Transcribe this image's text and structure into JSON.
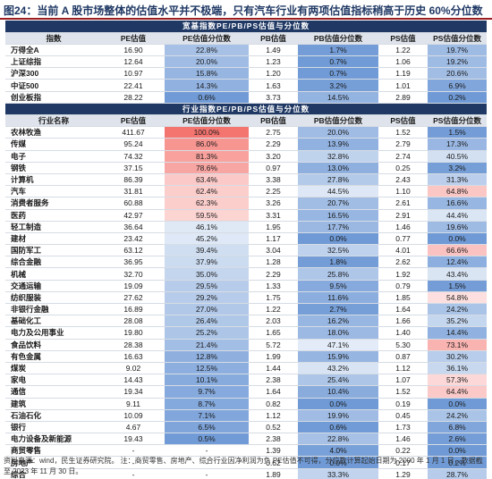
{
  "title": "图24：当前 A 股市场整体的估值水平并不极端，只有汽车行业有两项估值指标稍高于历史 60%分位数",
  "broad": {
    "band": "宽基指数PE/PB/PS估值与分位数",
    "columns": [
      "指数",
      "PE估值",
      "PE估值分位数",
      "PB估值",
      "PB估值分位数",
      "PS估值",
      "PS估值分位数"
    ],
    "rows": [
      [
        "万得全A",
        "16.90",
        "22.8%",
        "1.49",
        "1.7%",
        "1.22",
        "19.7%"
      ],
      [
        "上证综指",
        "12.64",
        "20.0%",
        "1.23",
        "0.7%",
        "1.06",
        "19.2%"
      ],
      [
        "沪深300",
        "10.97",
        "15.8%",
        "1.20",
        "0.7%",
        "1.19",
        "20.6%"
      ],
      [
        "中证500",
        "22.41",
        "14.3%",
        "1.63",
        "3.2%",
        "1.01",
        "6.9%"
      ],
      [
        "创业板指",
        "28.22",
        "0.6%",
        "3.73",
        "14.5%",
        "2.89",
        "0.2%"
      ]
    ]
  },
  "industry": {
    "band": "行业指数PE/PB/PS估值与分位数",
    "columns": [
      "行业名称",
      "PE估值",
      "PE估值分位数",
      "PB估值",
      "PB估值分位数",
      "PS估值",
      "PS估值分位数"
    ],
    "rows": [
      [
        "农林牧渔",
        "411.67",
        "100.0%",
        "2.75",
        "20.0%",
        "1.52",
        "1.5%"
      ],
      [
        "传媒",
        "95.24",
        "86.0%",
        "2.29",
        "13.9%",
        "2.79",
        "17.3%"
      ],
      [
        "电子",
        "74.32",
        "81.3%",
        "3.20",
        "32.8%",
        "2.74",
        "40.5%"
      ],
      [
        "钢铁",
        "37.15",
        "78.6%",
        "0.97",
        "13.0%",
        "0.25",
        "3.2%"
      ],
      [
        "计算机",
        "86.39",
        "63.4%",
        "3.38",
        "27.8%",
        "2.43",
        "31.3%"
      ],
      [
        "汽车",
        "31.81",
        "62.4%",
        "2.25",
        "44.5%",
        "1.10",
        "64.8%"
      ],
      [
        "消费者服务",
        "60.88",
        "62.3%",
        "3.26",
        "20.7%",
        "2.61",
        "16.6%"
      ],
      [
        "医药",
        "42.97",
        "59.5%",
        "3.31",
        "16.5%",
        "2.91",
        "44.4%"
      ],
      [
        "轻工制造",
        "36.64",
        "46.1%",
        "1.95",
        "17.7%",
        "1.46",
        "19.6%"
      ],
      [
        "建材",
        "23.42",
        "45.2%",
        "1.17",
        "0.0%",
        "0.77",
        "0.0%"
      ],
      [
        "国防军工",
        "63.12",
        "39.4%",
        "3.04",
        "32.5%",
        "4.01",
        "66.6%"
      ],
      [
        "综合金融",
        "36.95",
        "37.9%",
        "1.28",
        "1.8%",
        "2.62",
        "12.4%"
      ],
      [
        "机械",
        "32.70",
        "35.0%",
        "2.29",
        "25.8%",
        "1.92",
        "43.4%"
      ],
      [
        "交通运输",
        "19.09",
        "29.5%",
        "1.33",
        "9.5%",
        "0.79",
        "1.5%"
      ],
      [
        "纺织服装",
        "27.62",
        "29.2%",
        "1.75",
        "11.6%",
        "1.85",
        "54.8%"
      ],
      [
        "非银行金融",
        "16.89",
        "27.0%",
        "1.22",
        "2.7%",
        "1.64",
        "24.2%"
      ],
      [
        "基础化工",
        "28.08",
        "26.4%",
        "2.03",
        "16.2%",
        "1.66",
        "35.2%"
      ],
      [
        "电力及公用事业",
        "19.80",
        "25.2%",
        "1.65",
        "18.0%",
        "1.40",
        "14.4%"
      ],
      [
        "食品饮料",
        "28.38",
        "21.4%",
        "5.72",
        "47.1%",
        "5.30",
        "73.1%"
      ],
      [
        "有色金属",
        "16.63",
        "12.8%",
        "1.99",
        "15.9%",
        "0.87",
        "30.2%"
      ],
      [
        "煤炭",
        "9.02",
        "12.5%",
        "1.44",
        "43.2%",
        "1.12",
        "36.1%"
      ],
      [
        "家电",
        "14.43",
        "10.1%",
        "2.38",
        "25.4%",
        "1.07",
        "57.3%"
      ],
      [
        "通信",
        "19.34",
        "9.7%",
        "1.64",
        "10.4%",
        "1.52",
        "64.4%"
      ],
      [
        "建筑",
        "9.11",
        "8.7%",
        "0.82",
        "0.0%",
        "0.19",
        "0.0%"
      ],
      [
        "石油石化",
        "10.09",
        "7.1%",
        "1.12",
        "19.9%",
        "0.45",
        "24.2%"
      ],
      [
        "银行",
        "4.67",
        "6.5%",
        "0.52",
        "0.6%",
        "1.73",
        "6.8%"
      ],
      [
        "电力设备及新能源",
        "19.43",
        "0.5%",
        "2.38",
        "22.8%",
        "1.46",
        "2.6%"
      ],
      [
        "商贸零售",
        "-",
        "-",
        "1.39",
        "4.0%",
        "0.22",
        "0.0%"
      ],
      [
        "房地产",
        "-",
        "-",
        "0.62",
        "0.0%",
        "0.17",
        "0.2%"
      ],
      [
        "综合",
        "-",
        "-",
        "1.89",
        "33.3%",
        "1.29",
        "28.7%"
      ]
    ]
  },
  "colors": {
    "red": "#f4746f",
    "blue": "#6f9ad6",
    "band": "#1f3864"
  },
  "footnote": "资料来源：wind，民生证券研究院。 注：商贸零售、房地产、综合行业因净利润为负 PE估值不可得，分位数计算起始日期为 2000 年 1 月 1 日，数据截至 2023 年 11 月 30 日。"
}
